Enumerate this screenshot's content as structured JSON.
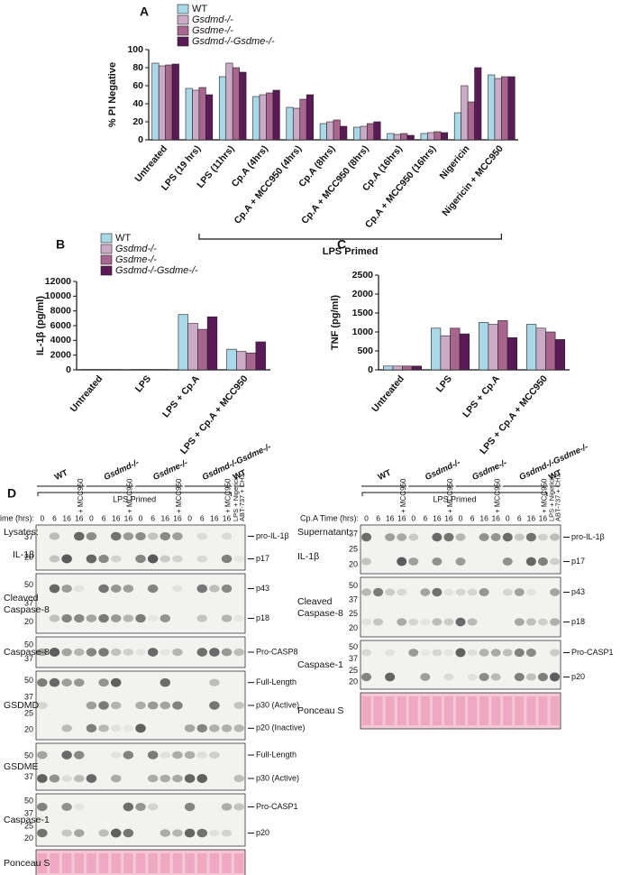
{
  "chart_data": [
    {
      "type": "bar",
      "label": "A",
      "ylabel": "% PI Negative",
      "annotation": "LPS Primed",
      "categories": [
        "Untreated",
        "LPS (19 hrs)",
        "LPS (11hrs)",
        "Cp.A (4hrs)",
        "Cp.A + MCC950 (4hrs)",
        "Cp.A (8hrs)",
        "Cp.A + MCC950 (8hrs)",
        "Cp.A (16hrs)",
        "Cp.A + MCC950 (16hrs)",
        "Nigericin",
        "Nigericin + MCC950"
      ],
      "series": [
        {
          "name": "WT",
          "color": "#a9d8e6",
          "values": [
            85,
            57,
            70,
            48,
            36,
            18,
            14,
            7,
            7,
            30,
            72
          ]
        },
        {
          "name": "Gsdmd-/-",
          "color": "#cbaac6",
          "values": [
            82,
            55,
            85,
            50,
            35,
            20,
            15,
            6,
            8,
            60,
            68
          ]
        },
        {
          "name": "Gsdme-/-",
          "color": "#a8668e",
          "values": [
            83,
            58,
            80,
            52,
            45,
            22,
            18,
            7,
            9,
            42,
            70
          ]
        },
        {
          "name": "Gsdmd-/-Gsdme-/-",
          "color": "#5a1a55",
          "values": [
            84,
            50,
            75,
            55,
            50,
            15,
            20,
            5,
            8,
            80,
            70
          ]
        }
      ],
      "ylim": [
        0,
        100
      ],
      "yticks": [
        0,
        20,
        40,
        60,
        80,
        100
      ]
    },
    {
      "type": "bar",
      "label": "B",
      "ylabel": "IL-1β (pg/ml)",
      "categories": [
        "Untreated",
        "LPS",
        "LPS + Cp.A",
        "LPS + Cp.A + MCC950"
      ],
      "series": [
        {
          "name": "WT",
          "color": "#a9d8e6",
          "values": [
            50,
            50,
            7500,
            2800
          ]
        },
        {
          "name": "Gsdmd-/-",
          "color": "#cbaac6",
          "values": [
            50,
            50,
            6300,
            2500
          ]
        },
        {
          "name": "Gsdme-/-",
          "color": "#a8668e",
          "values": [
            50,
            50,
            5500,
            2300
          ]
        },
        {
          "name": "Gsdmd-/-Gsdme-/-",
          "color": "#5a1a55",
          "values": [
            50,
            50,
            7200,
            3800
          ]
        }
      ],
      "ylim": [
        0,
        12000
      ],
      "yticks": [
        0,
        2000,
        4000,
        6000,
        8000,
        10000,
        12000
      ]
    },
    {
      "type": "bar",
      "label": "C",
      "ylabel": "TNF (pg/ml)",
      "categories": [
        "Untreated",
        "LPS",
        "LPS + Cp.A",
        "LPS + Cp.A + MCC950"
      ],
      "series": [
        {
          "color": "#a9d8e6",
          "values": [
            100,
            1100,
            1250,
            1200
          ]
        },
        {
          "color": "#cbaac6",
          "values": [
            100,
            900,
            1200,
            1100
          ]
        },
        {
          "color": "#a8668e",
          "values": [
            100,
            1100,
            1300,
            1000
          ]
        },
        {
          "color": "#5a1a55",
          "values": [
            100,
            950,
            850,
            800
          ]
        }
      ],
      "ylim": [
        0,
        2500
      ],
      "yticks": [
        0,
        500,
        1000,
        1500,
        2000,
        2500
      ]
    }
  ],
  "blots": {
    "label": "D",
    "genotypes": [
      "WT",
      "Gsdmd-/-",
      "Gsdme-/-",
      "Gsdmd-/-Gsdme-/-",
      "WT"
    ],
    "primed": "LPS Primed",
    "mcc": "+ MCC950",
    "control": [
      "LPS + Nigericin",
      "ABT-737 + CHX"
    ],
    "time_label": "Cp.A Time (hrs):",
    "times": [
      "0",
      "6",
      "16",
      "16"
    ],
    "panels": [
      {
        "heading": "Lysates:",
        "rows": [
          {
            "name": "IL-1β",
            "markers": [
              37,
              20
            ],
            "bands": [
              "pro-IL-1β",
              "p17"
            ]
          },
          {
            "name": "Cleaved Caspase-8",
            "markers": [
              50,
              37,
              20
            ],
            "bands": [
              "p43",
              "p18"
            ]
          },
          {
            "name": "Caspase-8",
            "markers": [
              50,
              37
            ],
            "bands": [
              "Pro-CASP8"
            ]
          },
          {
            "name": "GSDMD",
            "markers": [
              50,
              37,
              25,
              20
            ],
            "bands": [
              "Full-Length",
              "p30 (Active)",
              "p20 (Inactive)"
            ]
          },
          {
            "name": "GSDME",
            "markers": [
              50,
              37
            ],
            "bands": [
              "Full-Length",
              "p30 (Active)"
            ]
          },
          {
            "name": "Caspase-1",
            "markers": [
              50,
              37,
              25,
              20
            ],
            "bands": [
              "Pro-CASP1",
              "p20"
            ]
          },
          {
            "name": "Ponceau S",
            "markers": [],
            "bands": []
          }
        ]
      },
      {
        "heading": "Supernatant:",
        "rows": [
          {
            "name": "IL-1β",
            "markers": [
              37,
              25,
              20
            ],
            "bands": [
              "pro-IL-1β",
              "p17"
            ]
          },
          {
            "name": "Cleaved Caspase-8",
            "markers": [
              50,
              37,
              25,
              20
            ],
            "bands": [
              "p43",
              "p18"
            ]
          },
          {
            "name": "Caspase-1",
            "markers": [
              50,
              37,
              25,
              20
            ],
            "bands": [
              "Pro-CASP1",
              "p20"
            ]
          },
          {
            "name": "Ponceau S",
            "markers": [],
            "bands": []
          }
        ]
      }
    ]
  }
}
